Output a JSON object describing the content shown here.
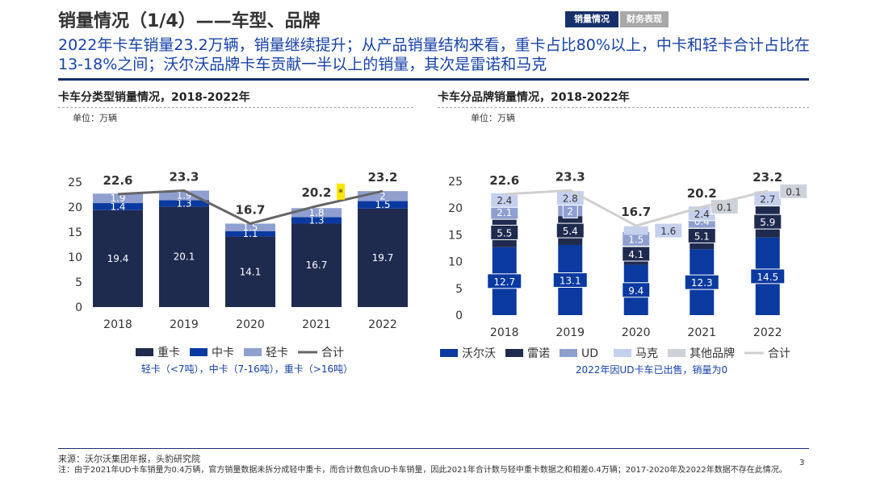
{
  "header": {
    "title": "销量情况（1/4）——车型、品牌",
    "tabs": [
      {
        "label": "销量情况",
        "active": true
      },
      {
        "label": "财务表现",
        "active": false
      }
    ],
    "subtitle": "2022年卡车销量23.2万辆，销量继续提升；从产品销量结构来看，重卡占比80%以上，中卡和轻卡合计占比在13-18%之间；沃尔沃品牌卡车贡献一半以上的销量，其次是雷诺和马克"
  },
  "chart_data": [
    {
      "type": "bar",
      "stacked": true,
      "title": "卡车分类型销量情况，2018-2022年",
      "unit": "单位：万辆",
      "categories": [
        "2018",
        "2019",
        "2020",
        "2021",
        "2022"
      ],
      "ylim": [
        0,
        25
      ],
      "yticks": [
        0,
        5,
        10,
        15,
        20,
        25
      ],
      "series": [
        {
          "name": "重卡",
          "values": [
            19.4,
            20.1,
            14.1,
            16.7,
            19.7
          ],
          "color": "#1f2a4f",
          "label_color": "#ffffff"
        },
        {
          "name": "中卡",
          "values": [
            1.4,
            1.3,
            1.1,
            1.3,
            1.5
          ],
          "color": "#0a3aa0",
          "label_color": "#ffffff"
        },
        {
          "name": "轻卡",
          "values": [
            1.9,
            1.9,
            1.5,
            1.8,
            2.0
          ],
          "color": "#8f9fd0",
          "label_color": "#ffffff"
        }
      ],
      "total": {
        "name": "合计",
        "values": [
          22.6,
          23.3,
          16.7,
          20.2,
          23.2
        ],
        "color": "#666666"
      },
      "footnote_marker": {
        "category": "2021",
        "text": "*"
      },
      "legend_note": "轻卡（<7吨），中卡（7-16吨），重卡（>16吨）"
    },
    {
      "type": "bar",
      "stacked": true,
      "title": "卡车分品牌销量情况，2018-2022年",
      "unit": "单位：万辆",
      "categories": [
        "2018",
        "2019",
        "2020",
        "2021",
        "2022"
      ],
      "ylim": [
        0,
        25
      ],
      "yticks": [
        0,
        5,
        10,
        15,
        20,
        25
      ],
      "series": [
        {
          "name": "沃尔沃",
          "values": [
            12.7,
            13.1,
            9.4,
            12.3,
            14.5
          ],
          "color": "#0a3aa0",
          "label_color": "#ffffff"
        },
        {
          "name": "雷诺",
          "values": [
            5.5,
            5.4,
            4.1,
            5.1,
            5.9
          ],
          "color": "#1f2a4f",
          "label_color": "#ffffff"
        },
        {
          "name": "UD",
          "values": [
            2.1,
            2.0,
            1.5,
            0.4,
            0
          ],
          "labels": [
            "2.1",
            "2",
            "1.5",
            "0.4",
            ""
          ],
          "color": "#8f9fd0",
          "label_color": "#ffffff"
        },
        {
          "name": "马克",
          "values": [
            2.4,
            2.8,
            1.6,
            2.4,
            2.7
          ],
          "color": "#c5d0ee",
          "label_color": "#333333"
        },
        {
          "name": "其他品牌",
          "values": [
            0,
            0,
            0,
            0.1,
            0.1
          ],
          "labels": [
            "",
            "",
            "",
            "0.1",
            "0.1"
          ],
          "color": "#cdd2da",
          "label_color": "#333333"
        }
      ],
      "total": {
        "name": "合计",
        "values": [
          22.6,
          23.3,
          16.7,
          20.2,
          23.2
        ],
        "color": "#d0d0d0"
      },
      "legend_note": "2022年因UD卡车已出售，销量为0"
    }
  ],
  "footer": {
    "source": "来源：沃尔沃集团年报，头豹研究院",
    "note": "注：由于2021年UD卡车销量为0.4万辆，官方销量数据未拆分成轻中重卡，而合计数包含UD卡车销量，因此2021年合计数与轻中重卡数据之和相差0.4万辆；2017-2020年及2022年数据不存在此情况。",
    "page": "3"
  }
}
